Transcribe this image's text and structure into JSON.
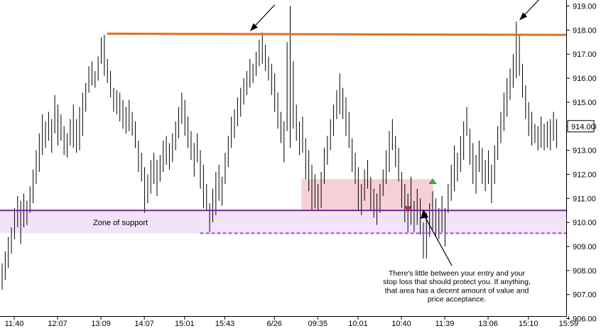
{
  "chart_data": {
    "type": "ohlc",
    "x_tick_labels": [
      "11:40",
      "12:07",
      "13:09",
      "14:07",
      "15:01",
      "15:43",
      "6/26",
      "09:35",
      "10:01",
      "10:40",
      "11:39",
      "13:06",
      "15:10",
      "15:59"
    ],
    "x_tick_bars": [
      0,
      14,
      28,
      42,
      55,
      68,
      84,
      98,
      111,
      125,
      139,
      153,
      166,
      179
    ],
    "y_ticks": [
      "906.00",
      "907.00",
      "908.00",
      "909.00",
      "910.00",
      "911.00",
      "912.00",
      "913.00",
      "914.00",
      "915.00",
      "916.00",
      "917.00",
      "918.00",
      "919.00"
    ],
    "ylim": [
      906.0,
      919.2
    ],
    "last_price_label": "914.00",
    "last_price": 914.0,
    "grid": false,
    "resistance_line": {
      "price_start": 917.85,
      "price_end": 917.8,
      "from_bar": 34,
      "color": "#e0701e"
    },
    "support_line": {
      "price": 910.5,
      "color": "#7b1fa2"
    },
    "support_dashed_line": {
      "price": 909.55,
      "from_bar": 64,
      "color": "#9c4bd8"
    },
    "support_zone": {
      "from": 909.55,
      "to": 910.5,
      "color": "#f1e4f8",
      "label": "Zone of support"
    },
    "risk_zone": {
      "from_bar": 97,
      "to_bar": 139,
      "low": 910.5,
      "high": 911.8,
      "color": "#f7cfd6"
    },
    "markers": [
      {
        "type": "sell-triangle",
        "bar": 131,
        "price": 910.55,
        "color": "#d9262e"
      },
      {
        "type": "buy-triangle",
        "bar": 139,
        "price": 911.7,
        "color": "#3bb84b"
      }
    ],
    "annotation": {
      "lines": [
        "There's little between your entry and your",
        "stop loss that should protect you. If anything,",
        "that area has a decent amount of value and",
        "price acceptance."
      ],
      "points_to_bar": 136,
      "points_to_price": 910.6
    },
    "arrows": [
      {
        "bar": 80,
        "price": 917.9
      },
      {
        "bar": 167,
        "price": 918.35
      }
    ],
    "bars": [
      {
        "h": 908.3,
        "l": 907.2
      },
      {
        "h": 908.8,
        "l": 907.6
      },
      {
        "h": 909.4,
        "l": 908.1
      },
      {
        "h": 909.8,
        "l": 908.7
      },
      {
        "h": 910.6,
        "l": 909.3
      },
      {
        "h": 911.1,
        "l": 909.8
      },
      {
        "h": 910.9,
        "l": 909.1
      },
      {
        "h": 911.2,
        "l": 909.8
      },
      {
        "h": 910.9,
        "l": 909.9
      },
      {
        "h": 911.5,
        "l": 910.4
      },
      {
        "h": 912.2,
        "l": 910.8
      },
      {
        "h": 913.0,
        "l": 911.6
      },
      {
        "h": 913.7,
        "l": 912.1
      },
      {
        "h": 914.5,
        "l": 912.8
      },
      {
        "h": 914.2,
        "l": 913.1
      },
      {
        "h": 914.6,
        "l": 913.4
      },
      {
        "h": 914.3,
        "l": 912.9
      },
      {
        "h": 915.3,
        "l": 913.7
      },
      {
        "h": 914.9,
        "l": 913.2
      },
      {
        "h": 914.5,
        "l": 913.4
      },
      {
        "h": 914.0,
        "l": 912.8
      },
      {
        "h": 913.7,
        "l": 912.7
      },
      {
        "h": 914.3,
        "l": 913.2
      },
      {
        "h": 914.9,
        "l": 913.1
      },
      {
        "h": 914.3,
        "l": 912.9
      },
      {
        "h": 914.8,
        "l": 913.0
      },
      {
        "h": 915.4,
        "l": 913.6
      },
      {
        "h": 915.8,
        "l": 914.6
      },
      {
        "h": 916.5,
        "l": 915.4
      },
      {
        "h": 916.7,
        "l": 915.7
      },
      {
        "h": 916.3,
        "l": 915.6
      },
      {
        "h": 916.9,
        "l": 915.9
      },
      {
        "h": 917.7,
        "l": 916.6
      },
      {
        "h": 917.8,
        "l": 916.1
      },
      {
        "h": 916.8,
        "l": 915.8
      },
      {
        "h": 916.3,
        "l": 915.2
      },
      {
        "h": 915.6,
        "l": 914.6
      },
      {
        "h": 915.5,
        "l": 914.5
      },
      {
        "h": 915.4,
        "l": 914.2
      },
      {
        "h": 915.1,
        "l": 913.9
      },
      {
        "h": 914.8,
        "l": 913.7
      },
      {
        "h": 915.1,
        "l": 913.8
      },
      {
        "h": 914.6,
        "l": 913.6
      },
      {
        "h": 914.2,
        "l": 913.1
      },
      {
        "h": 913.4,
        "l": 912.1
      },
      {
        "h": 912.9,
        "l": 911.7
      },
      {
        "h": 912.3,
        "l": 910.4
      },
      {
        "h": 912.0,
        "l": 910.8
      },
      {
        "h": 912.6,
        "l": 911.2
      },
      {
        "h": 912.9,
        "l": 911.6
      },
      {
        "h": 912.6,
        "l": 911.1
      },
      {
        "h": 912.8,
        "l": 911.7
      },
      {
        "h": 913.4,
        "l": 912.1
      },
      {
        "h": 913.6,
        "l": 912.4
      },
      {
        "h": 913.3,
        "l": 912.2
      },
      {
        "h": 913.7,
        "l": 912.5
      },
      {
        "h": 914.2,
        "l": 913.0
      },
      {
        "h": 914.8,
        "l": 913.5
      },
      {
        "h": 915.4,
        "l": 914.1
      },
      {
        "h": 915.1,
        "l": 913.6
      },
      {
        "h": 914.4,
        "l": 913.1
      },
      {
        "h": 913.8,
        "l": 912.6
      },
      {
        "h": 913.3,
        "l": 911.9
      },
      {
        "h": 913.7,
        "l": 912.5
      },
      {
        "h": 913.0,
        "l": 911.4
      },
      {
        "h": 912.4,
        "l": 910.6
      },
      {
        "h": 911.6,
        "l": 910.5
      },
      {
        "h": 910.8,
        "l": 909.6
      },
      {
        "h": 911.4,
        "l": 910.0
      },
      {
        "h": 912.1,
        "l": 910.3
      },
      {
        "h": 912.4,
        "l": 910.9
      },
      {
        "h": 911.9,
        "l": 910.7
      },
      {
        "h": 912.9,
        "l": 911.6
      },
      {
        "h": 913.6,
        "l": 912.3
      },
      {
        "h": 914.4,
        "l": 913.1
      },
      {
        "h": 914.7,
        "l": 913.5
      },
      {
        "h": 915.2,
        "l": 914.0
      },
      {
        "h": 915.6,
        "l": 914.4
      },
      {
        "h": 916.0,
        "l": 914.9
      },
      {
        "h": 916.3,
        "l": 915.3
      },
      {
        "h": 916.8,
        "l": 915.6
      },
      {
        "h": 916.6,
        "l": 915.8
      },
      {
        "h": 917.1,
        "l": 916.1
      },
      {
        "h": 917.6,
        "l": 916.5
      },
      {
        "h": 917.9,
        "l": 916.6
      },
      {
        "h": 917.4,
        "l": 916.3
      },
      {
        "h": 916.9,
        "l": 915.9
      },
      {
        "h": 916.6,
        "l": 915.3
      },
      {
        "h": 916.2,
        "l": 914.6
      },
      {
        "h": 915.4,
        "l": 913.9
      },
      {
        "h": 914.6,
        "l": 913.3
      },
      {
        "h": 914.2,
        "l": 912.5
      },
      {
        "h": 917.5,
        "l": 913.8
      },
      {
        "h": 919.0,
        "l": 913.1
      },
      {
        "h": 916.7,
        "l": 913.9
      },
      {
        "h": 914.9,
        "l": 913.4
      },
      {
        "h": 914.2,
        "l": 912.8
      },
      {
        "h": 914.4,
        "l": 912.9
      },
      {
        "h": 913.5,
        "l": 911.8
      },
      {
        "h": 913.0,
        "l": 911.3
      },
      {
        "h": 912.4,
        "l": 910.5
      },
      {
        "h": 912.0,
        "l": 910.6
      },
      {
        "h": 911.6,
        "l": 910.5
      },
      {
        "h": 912.1,
        "l": 910.6
      },
      {
        "h": 913.1,
        "l": 911.6
      },
      {
        "h": 913.6,
        "l": 912.4
      },
      {
        "h": 914.3,
        "l": 913.0
      },
      {
        "h": 914.9,
        "l": 913.6
      },
      {
        "h": 915.5,
        "l": 914.3
      },
      {
        "h": 916.2,
        "l": 914.5
      },
      {
        "h": 915.6,
        "l": 914.3
      },
      {
        "h": 915.2,
        "l": 913.6
      },
      {
        "h": 914.6,
        "l": 913.1
      },
      {
        "h": 913.5,
        "l": 912.1
      },
      {
        "h": 912.9,
        "l": 911.6
      },
      {
        "h": 912.3,
        "l": 910.5
      },
      {
        "h": 911.6,
        "l": 910.3
      },
      {
        "h": 912.2,
        "l": 910.9
      },
      {
        "h": 912.6,
        "l": 911.4
      },
      {
        "h": 911.9,
        "l": 910.5
      },
      {
        "h": 911.4,
        "l": 910.2
      },
      {
        "h": 911.2,
        "l": 909.9
      },
      {
        "h": 911.6,
        "l": 910.4
      },
      {
        "h": 912.2,
        "l": 911.1
      },
      {
        "h": 913.0,
        "l": 911.6
      },
      {
        "h": 913.8,
        "l": 912.1
      },
      {
        "h": 914.3,
        "l": 913.0
      },
      {
        "h": 913.6,
        "l": 912.3
      },
      {
        "h": 913.1,
        "l": 911.7
      },
      {
        "h": 912.1,
        "l": 910.6
      },
      {
        "h": 911.6,
        "l": 910.0
      },
      {
        "h": 911.2,
        "l": 909.6
      },
      {
        "h": 911.9,
        "l": 909.9
      },
      {
        "h": 910.9,
        "l": 909.6
      },
      {
        "h": 911.4,
        "l": 909.9
      },
      {
        "h": 911.0,
        "l": 909.5
      },
      {
        "h": 910.0,
        "l": 908.5
      },
      {
        "h": 910.4,
        "l": 908.5
      },
      {
        "h": 910.8,
        "l": 909.4
      },
      {
        "h": 911.3,
        "l": 909.7
      },
      {
        "h": 911.0,
        "l": 909.4
      },
      {
        "h": 910.6,
        "l": 909.3
      },
      {
        "h": 911.1,
        "l": 909.6
      },
      {
        "h": 910.6,
        "l": 909.0
      },
      {
        "h": 911.6,
        "l": 910.4
      },
      {
        "h": 912.4,
        "l": 910.9
      },
      {
        "h": 913.2,
        "l": 911.3
      },
      {
        "h": 912.9,
        "l": 911.7
      },
      {
        "h": 913.6,
        "l": 912.1
      },
      {
        "h": 914.2,
        "l": 912.6
      },
      {
        "h": 914.8,
        "l": 913.6
      },
      {
        "h": 913.9,
        "l": 912.4
      },
      {
        "h": 913.3,
        "l": 911.6
      },
      {
        "h": 912.8,
        "l": 911.2
      },
      {
        "h": 913.4,
        "l": 912.1
      },
      {
        "h": 913.1,
        "l": 911.6
      },
      {
        "h": 912.6,
        "l": 911.3
      },
      {
        "h": 913.0,
        "l": 911.6
      },
      {
        "h": 912.4,
        "l": 910.8
      },
      {
        "h": 913.2,
        "l": 911.6
      },
      {
        "h": 914.0,
        "l": 912.6
      },
      {
        "h": 914.6,
        "l": 913.3
      },
      {
        "h": 915.4,
        "l": 913.8
      },
      {
        "h": 916.0,
        "l": 914.4
      },
      {
        "h": 916.4,
        "l": 915.1
      },
      {
        "h": 917.0,
        "l": 915.6
      },
      {
        "h": 918.35,
        "l": 916.0
      },
      {
        "h": 917.8,
        "l": 916.1
      },
      {
        "h": 916.6,
        "l": 915.2
      },
      {
        "h": 915.7,
        "l": 914.3
      },
      {
        "h": 915.0,
        "l": 913.6
      },
      {
        "h": 914.6,
        "l": 913.2
      },
      {
        "h": 914.1,
        "l": 913.3
      },
      {
        "h": 914.0,
        "l": 913.0
      },
      {
        "h": 914.4,
        "l": 913.1
      },
      {
        "h": 914.1,
        "l": 913.0
      },
      {
        "h": 914.2,
        "l": 913.1
      },
      {
        "h": 914.3,
        "l": 913.0
      },
      {
        "h": 914.6,
        "l": 913.4
      },
      {
        "h": 914.3,
        "l": 913.1
      }
    ]
  }
}
